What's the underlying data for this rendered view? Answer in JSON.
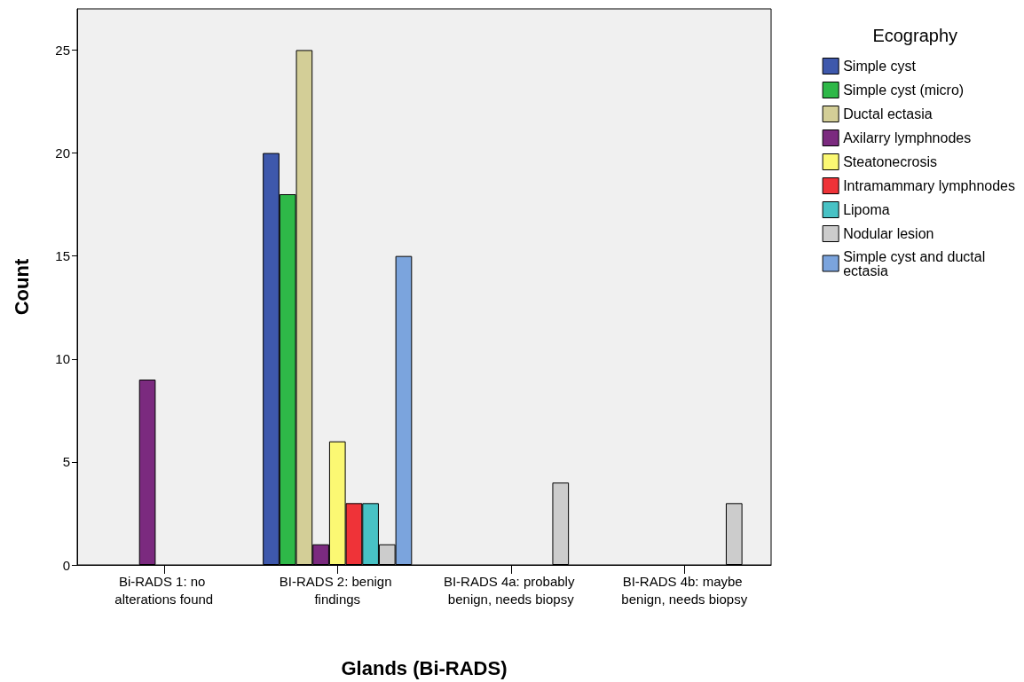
{
  "chart_data": {
    "type": "bar",
    "xlabel": "Glands (Bi-RADS)",
    "ylabel": "Count",
    "legend_title": "Ecography",
    "legend": "right",
    "grid": false,
    "categories": [
      "Bi-RADS 1: no alterations found",
      "BI-RADS 2: benign findings",
      "BI-RADS 4a: probably benign, needs biopsy",
      "BI-RADS 4b: maybe benign, needs biopsy"
    ],
    "ylim": [
      0,
      27
    ],
    "yticks": [
      0,
      5,
      10,
      15,
      20,
      25
    ],
    "series": [
      {
        "name": "Simple cyst",
        "color": "#3e58ac",
        "values": [
          null,
          20,
          null,
          null
        ]
      },
      {
        "name": "Simple cyst (micro)",
        "color": "#2eb848",
        "values": [
          null,
          18,
          null,
          null
        ]
      },
      {
        "name": "Ductal ectasia",
        "color": "#d3ce97",
        "values": [
          null,
          25,
          null,
          null
        ]
      },
      {
        "name": "Axilarry lymphnodes",
        "color": "#7b2a7f",
        "values": [
          9,
          1,
          null,
          null
        ]
      },
      {
        "name": "Steatonecrosis",
        "color": "#fbf873",
        "values": [
          null,
          6,
          null,
          null
        ]
      },
      {
        "name": "Intramammary lymphnodes",
        "color": "#ef3338",
        "values": [
          null,
          3,
          null,
          null
        ]
      },
      {
        "name": "Lipoma",
        "color": "#48c2c5",
        "values": [
          null,
          3,
          null,
          null
        ]
      },
      {
        "name": "Nodular lesion",
        "color": "#cccccc",
        "values": [
          null,
          1,
          4,
          3
        ]
      },
      {
        "name": "Simple cyst and ductal ectasia",
        "color": "#7ba4dd",
        "values": [
          null,
          15,
          null,
          null
        ]
      }
    ]
  }
}
